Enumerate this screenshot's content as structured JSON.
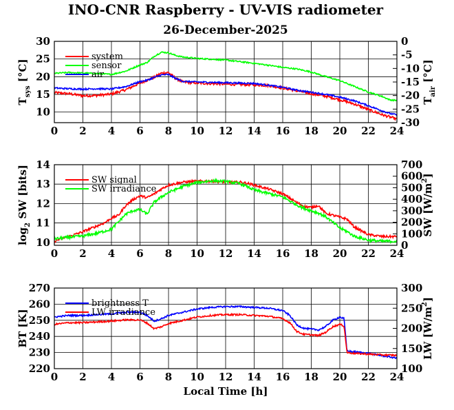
{
  "figure": {
    "title": "INO-CNR Raspberry - UV-VIS radiometer",
    "date": "26-December-2025",
    "xlabel": "Local Time [h]"
  },
  "chart_data": [
    {
      "type": "line",
      "id": "temperature",
      "xlim": [
        0,
        24
      ],
      "xticks": [
        0,
        2,
        4,
        6,
        8,
        10,
        12,
        14,
        16,
        18,
        20,
        22,
        24
      ],
      "ylim": [
        7,
        30
      ],
      "yticks": [
        10,
        15,
        20,
        25,
        30
      ],
      "y2lim": [
        -30,
        0
      ],
      "y2ticks": [
        -30,
        -25,
        -20,
        -15,
        -10,
        -5,
        0
      ],
      "ylabel": "T_sys [°C]",
      "y2label": "T_air [°C]",
      "grid": true,
      "legend_position": "top-left",
      "series": [
        {
          "name": "system",
          "color": "#ff0000",
          "axis": "left",
          "noise": 0.35,
          "x": [
            0,
            1,
            2,
            3,
            4,
            5,
            6,
            6.5,
            7,
            7.5,
            8,
            8.5,
            9,
            10,
            12,
            14,
            15,
            16,
            17,
            18,
            19,
            20,
            21,
            22,
            23,
            24
          ],
          "values": [
            15.5,
            15.2,
            14.6,
            14.7,
            15.1,
            16.3,
            18.2,
            19.0,
            19.8,
            21.0,
            21.2,
            19.5,
            18.5,
            18.2,
            17.9,
            17.7,
            17.5,
            16.8,
            16.0,
            15.2,
            14.5,
            13.5,
            12.3,
            10.7,
            9.2,
            8.0
          ]
        },
        {
          "name": "sensor",
          "color": "#00ff00",
          "axis": "right",
          "noise": 0.25,
          "x": [
            0,
            1,
            2,
            3,
            4,
            5,
            6,
            6.5,
            7,
            7.5,
            8,
            8.5,
            9,
            10,
            11,
            12,
            13,
            14,
            15,
            16,
            17,
            18,
            19,
            20,
            21,
            22,
            23,
            23.5,
            24
          ],
          "values": [
            -11.8,
            -11.5,
            -11.7,
            -11.9,
            -12.2,
            -11.0,
            -8.7,
            -7.8,
            -5.5,
            -4.0,
            -4.2,
            -5.2,
            -5.8,
            -6.3,
            -6.6,
            -6.9,
            -7.5,
            -8.1,
            -8.8,
            -9.6,
            -10.2,
            -11.3,
            -13.0,
            -14.5,
            -16.6,
            -18.7,
            -20.4,
            -21.6,
            -21.8
          ]
        },
        {
          "name": "air",
          "color": "#0000ff",
          "axis": "left",
          "noise": 0.22,
          "x": [
            0,
            1,
            2,
            3,
            4,
            5,
            6,
            6.5,
            7,
            7.5,
            8,
            8.5,
            9,
            10,
            12,
            14,
            15,
            16,
            17,
            18,
            19,
            20,
            21,
            22,
            23,
            23.5,
            24
          ],
          "values": [
            16.8,
            16.6,
            16.5,
            16.6,
            16.5,
            17.2,
            18.6,
            19.0,
            19.8,
            20.5,
            20.6,
            19.5,
            18.7,
            18.5,
            18.3,
            18.1,
            17.6,
            17.0,
            16.2,
            15.6,
            15.0,
            14.2,
            13.2,
            11.8,
            10.3,
            9.6,
            9.2
          ]
        }
      ]
    },
    {
      "type": "line",
      "id": "shortwave",
      "xlim": [
        0,
        24
      ],
      "xticks": [
        0,
        2,
        4,
        6,
        8,
        10,
        12,
        14,
        16,
        18,
        20,
        22,
        24
      ],
      "ylim": [
        9.85,
        14
      ],
      "yticks": [
        10,
        11,
        12,
        13,
        14
      ],
      "y2lim": [
        0,
        700
      ],
      "y2ticks": [
        0,
        100,
        200,
        300,
        400,
        500,
        600,
        700
      ],
      "ylabel": "log2 SW [bits]",
      "y2label": "SW [W/m2]",
      "grid": true,
      "legend_position": "top-left",
      "series": [
        {
          "name": "SW signal",
          "color": "#ff0000",
          "axis": "left",
          "noise": 0.06,
          "x": [
            0,
            0.5,
            1,
            2,
            3,
            3.5,
            4,
            4.5,
            5,
            5.5,
            6,
            6.5,
            7,
            7.5,
            8,
            9,
            10,
            11,
            12,
            13,
            13.5,
            14,
            15,
            16,
            17,
            17.5,
            18,
            18.5,
            19,
            19.5,
            20,
            20.5,
            21,
            22,
            23,
            24
          ],
          "values": [
            10.05,
            10.2,
            10.3,
            10.55,
            10.85,
            11.0,
            11.25,
            11.4,
            11.9,
            12.2,
            12.4,
            12.3,
            12.5,
            12.75,
            12.95,
            13.1,
            13.15,
            13.15,
            13.1,
            13.1,
            13.05,
            12.95,
            12.75,
            12.5,
            12.05,
            11.85,
            11.8,
            11.9,
            11.5,
            11.4,
            11.3,
            11.2,
            10.8,
            10.4,
            10.3,
            10.3
          ]
        },
        {
          "name": "SW irradiance",
          "color": "#00ff00",
          "axis": "right",
          "noise": 12,
          "x": [
            0,
            1,
            2,
            3,
            4,
            4.5,
            5,
            5.5,
            6,
            6.5,
            7,
            7.5,
            8,
            9,
            10,
            11,
            12,
            13,
            13.5,
            14,
            15,
            16,
            17,
            17.5,
            18,
            18.5,
            19,
            19.5,
            20,
            20.5,
            21,
            22,
            23,
            24
          ],
          "values": [
            55,
            70,
            80,
            105,
            140,
            205,
            270,
            300,
            310,
            270,
            375,
            420,
            460,
            510,
            545,
            560,
            555,
            535,
            510,
            480,
            450,
            420,
            350,
            320,
            300,
            280,
            250,
            200,
            150,
            120,
            80,
            45,
            35,
            35
          ]
        }
      ]
    },
    {
      "type": "line",
      "id": "longwave",
      "xlim": [
        0,
        24
      ],
      "xticks": [
        0,
        2,
        4,
        6,
        8,
        10,
        12,
        14,
        16,
        18,
        20,
        22,
        24
      ],
      "ylim": [
        220,
        270
      ],
      "yticks": [
        220,
        230,
        240,
        250,
        260,
        270
      ],
      "y2lim": [
        100,
        300
      ],
      "y2ticks": [
        100,
        150,
        200,
        250,
        300
      ],
      "ylabel": "BT [K]",
      "y2label": "LW [W/m2]",
      "grid": true,
      "legend_position": "top-left",
      "series": [
        {
          "name": "brightness T",
          "color": "#0000ff",
          "axis": "left",
          "noise": 0.5,
          "x": [
            0,
            1,
            2,
            3,
            4,
            5,
            6,
            6.5,
            7,
            7.5,
            8,
            9,
            10,
            11,
            12,
            13,
            14,
            15,
            16,
            16.5,
            17,
            17.5,
            18,
            18.5,
            19,
            19.5,
            20,
            20.3,
            20.5,
            21,
            22,
            23,
            24
          ],
          "values": [
            252,
            253,
            253,
            253.5,
            254,
            255,
            255,
            253,
            249.5,
            251,
            253,
            255,
            257,
            258,
            258.5,
            258.5,
            258,
            257.5,
            256,
            253,
            247,
            245,
            244.5,
            244,
            246,
            250,
            252,
            251,
            231,
            230.5,
            229.5,
            228,
            226.5
          ]
        },
        {
          "name": "LW irradiance",
          "color": "#ff0000",
          "axis": "right",
          "noise": 2,
          "x": [
            0,
            1,
            2,
            3,
            4,
            5,
            6,
            6.5,
            7,
            7.5,
            8,
            9,
            10,
            11,
            12,
            13,
            14,
            15,
            16,
            16.5,
            17,
            17.5,
            18,
            18.5,
            19,
            19.5,
            20,
            20.3,
            20.5,
            21,
            22,
            23,
            24
          ],
          "values": [
            210,
            214,
            214,
            216,
            218,
            221,
            221,
            213,
            199,
            204,
            212,
            220,
            228,
            232,
            234,
            234,
            232,
            230,
            224,
            214,
            192,
            185,
            184,
            182,
            190,
            204,
            210,
            206,
            140,
            138,
            136,
            134,
            133
          ]
        }
      ]
    }
  ]
}
